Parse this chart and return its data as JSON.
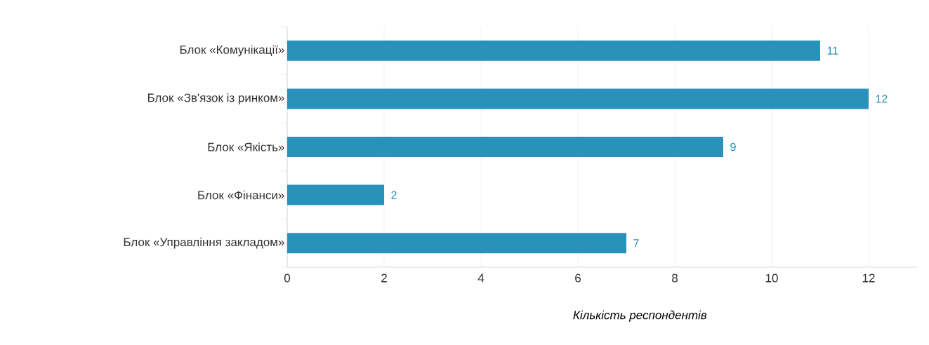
{
  "chart_data": {
    "type": "bar",
    "orientation": "horizontal",
    "categories": [
      "Блок «Комунікації»",
      "Блок «Зв'язок із ринком»",
      "Блок «Якість»",
      "Блок «Фінанси»",
      "Блок «Управління закладом»"
    ],
    "values": [
      11,
      12,
      9,
      2,
      7
    ],
    "color": "#2a91bb",
    "xlim": [
      0,
      13
    ],
    "xticks": [
      0,
      2,
      4,
      6,
      8,
      10,
      12
    ],
    "grid": "x",
    "data_labels": true,
    "xlabel": "Кількість респондентів"
  }
}
